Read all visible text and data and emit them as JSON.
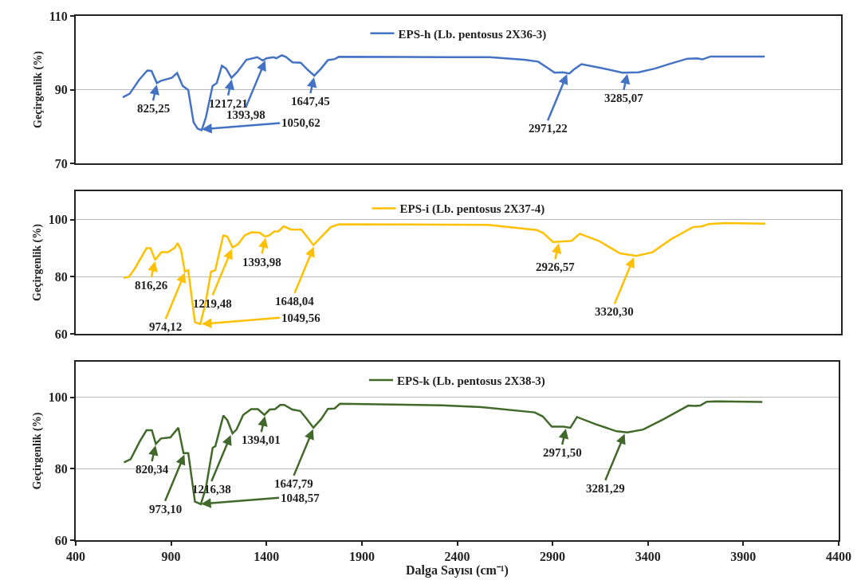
{
  "chart_data": [
    {
      "type": "line",
      "ylabel": "Geçirgenlik (%)",
      "xlim": [
        400,
        4400
      ],
      "ylim": [
        70,
        110
      ],
      "yticks": [
        70,
        90,
        110
      ],
      "grid": "y",
      "legend": "top",
      "tick_labels": "y",
      "series": [
        {
          "name": "EPS-h (Lb. pentosus 2X36-3)",
          "color": "#4472c4",
          "x": [
            646,
            682,
            732,
            774,
            796,
            824,
            846,
            902,
            930,
            959,
            988,
            1016,
            1037,
            1058,
            1080,
            1115,
            1137,
            1164,
            1186,
            1214,
            1243,
            1292,
            1349,
            1378,
            1396,
            1434,
            1448,
            1477,
            1498,
            1533,
            1576,
            1612,
            1647,
            1682,
            1718,
            1754,
            1775,
            2349,
            2562,
            2746,
            2817,
            2860,
            2903,
            2944,
            2980,
            3002,
            3043,
            3144,
            3257,
            3342,
            3426,
            3512,
            3597,
            3647,
            3675,
            3718,
            3768,
            4001
          ],
          "values": [
            87.9,
            88.9,
            92.7,
            95.2,
            95.1,
            91.8,
            92.4,
            93.2,
            94.5,
            91.0,
            89.9,
            81.1,
            79.4,
            79.0,
            82.4,
            91.0,
            91.8,
            96.5,
            95.7,
            93.2,
            94.7,
            98.1,
            98.8,
            97.9,
            98.5,
            98.8,
            98.5,
            99.3,
            98.9,
            97.4,
            97.3,
            95.4,
            93.8,
            95.7,
            98.0,
            98.3,
            98.9,
            98.8,
            98.8,
            98.1,
            97.6,
            96.1,
            94.6,
            94.7,
            94.4,
            95.4,
            96.9,
            95.9,
            94.6,
            94.7,
            95.7,
            97.1,
            98.4,
            98.5,
            98.2,
            99.0,
            99.0,
            99.0
          ]
        }
      ],
      "annotations": [
        {
          "text": "825,25",
          "x": 825.25,
          "y": 91.8
        },
        {
          "text": "1050,62",
          "x": 1050.62,
          "y": 79.2
        },
        {
          "text": "1217,21",
          "x": 1217.21,
          "y": 93.2
        },
        {
          "text": "1393,98",
          "x": 1393.98,
          "y": 98.3
        },
        {
          "text": "1647,45",
          "x": 1647.45,
          "y": 93.8
        },
        {
          "text": "2971,22",
          "x": 2971.22,
          "y": 94.6
        },
        {
          "text": "3285,07",
          "x": 3285.07,
          "y": 94.7
        }
      ]
    },
    {
      "type": "line",
      "ylabel": "Geçirgenlik (%)",
      "xlim": [
        400,
        4400
      ],
      "ylim": [
        60,
        110
      ],
      "yticks": [
        60,
        80,
        100
      ],
      "grid": "y",
      "legend": "top",
      "tick_labels": "y",
      "series": [
        {
          "name": "EPS-i (Lb. pentosus 2X37-4)",
          "color": "#ffc000",
          "x": [
            650,
            678,
            707,
            742,
            770,
            791,
            815,
            847,
            882,
            918,
            932,
            950,
            970,
            988,
            1023,
            1051,
            1079,
            1107,
            1129,
            1171,
            1192,
            1220,
            1248,
            1283,
            1318,
            1361,
            1389,
            1410,
            1438,
            1459,
            1487,
            1523,
            1579,
            1614,
            1642,
            1691,
            1733,
            1775,
            2345,
            2556,
            2809,
            2844,
            2894,
            2950,
            2992,
            3034,
            3133,
            3245,
            3329,
            3414,
            3512,
            3625,
            3674,
            3709,
            3794,
            4005
          ],
          "values": [
            79.6,
            80.0,
            82.7,
            86.8,
            90.0,
            90.0,
            85.9,
            88.6,
            88.6,
            90.2,
            91.8,
            89.5,
            81.8,
            82.3,
            64.1,
            63.4,
            70.9,
            81.8,
            82.3,
            94.5,
            94.1,
            90.3,
            91.4,
            94.5,
            95.6,
            95.5,
            94.1,
            94.5,
            95.9,
            95.9,
            97.7,
            96.6,
            96.5,
            93.6,
            91.1,
            94.5,
            97.4,
            98.4,
            98.3,
            98.2,
            96.4,
            95.3,
            92.2,
            92.4,
            92.6,
            95.1,
            92.6,
            88.2,
            87.3,
            88.6,
            93.2,
            97.4,
            97.7,
            98.5,
            98.8,
            98.6
          ]
        }
      ],
      "annotations": [
        {
          "text": "816,26",
          "x": 816.26,
          "y": 86.0
        },
        {
          "text": "974,12",
          "x": 974.12,
          "y": 82.0
        },
        {
          "text": "1049,56",
          "x": 1049.56,
          "y": 63.4
        },
        {
          "text": "1219,48",
          "x": 1219.48,
          "y": 90.3
        },
        {
          "text": "1393,98",
          "x": 1393.98,
          "y": 94.2
        },
        {
          "text": "1648,04",
          "x": 1648.04,
          "y": 91.1
        },
        {
          "text": "2926,57",
          "x": 2926.57,
          "y": 92.3
        },
        {
          "text": "3320,30",
          "x": 3320.3,
          "y": 87.3
        }
      ]
    },
    {
      "type": "line",
      "ylabel": "Geçirgenlik (%)",
      "xlabel": "Dalga Sayısı (cm⁻¹)",
      "xlim": [
        400,
        4400
      ],
      "xticks": [
        400,
        900,
        1400,
        1900,
        2400,
        2900,
        3400,
        3900,
        4400
      ],
      "ylim": [
        60,
        110
      ],
      "yticks": [
        60,
        80,
        100
      ],
      "grid": "y",
      "legend": "top",
      "series": [
        {
          "name": "EPS-k (Lb. pentosus 2X38-3)",
          "color": "#41692a",
          "x": [
            653,
            688,
            736,
            771,
            799,
            820,
            847,
            896,
            938,
            965,
            990,
            1025,
            1056,
            1083,
            1118,
            1132,
            1174,
            1195,
            1222,
            1243,
            1278,
            1320,
            1355,
            1389,
            1417,
            1445,
            1472,
            1493,
            1535,
            1577,
            1611,
            1646,
            1688,
            1722,
            1757,
            1785,
            2319,
            2528,
            2806,
            2848,
            2896,
            2958,
            2993,
            3028,
            3125,
            3236,
            3292,
            3375,
            3486,
            3611,
            3646,
            3674,
            3708,
            3764,
            4000
          ],
          "values": [
            81.8,
            82.7,
            87.7,
            90.8,
            90.8,
            87.0,
            88.5,
            88.8,
            91.5,
            84.4,
            84.4,
            70.8,
            70.1,
            74.8,
            85.9,
            86.3,
            94.9,
            93.6,
            89.9,
            91.0,
            95.1,
            96.7,
            96.7,
            95.1,
            96.6,
            96.7,
            97.9,
            97.9,
            96.6,
            96.2,
            94.0,
            91.5,
            94.0,
            96.8,
            96.9,
            98.2,
            97.8,
            97.3,
            95.8,
            94.7,
            91.8,
            91.8,
            91.5,
            94.5,
            92.5,
            90.5,
            90.2,
            91.0,
            94.0,
            97.7,
            97.6,
            97.7,
            98.8,
            98.9,
            98.7
          ]
        }
      ],
      "annotations": [
        {
          "text": "820,34",
          "x": 820.34,
          "y": 87.0
        },
        {
          "text": "973,10",
          "x": 973.1,
          "y": 84.4
        },
        {
          "text": "1048,57",
          "x": 1048.57,
          "y": 70.1
        },
        {
          "text": "1216,38",
          "x": 1216.38,
          "y": 89.9
        },
        {
          "text": "1394,01",
          "x": 1394.01,
          "y": 95.2
        },
        {
          "text": "1647,79",
          "x": 1647.79,
          "y": 91.5
        },
        {
          "text": "2971,50",
          "x": 2971.5,
          "y": 91.7
        },
        {
          "text": "3281,29",
          "x": 3281.29,
          "y": 90.2
        }
      ]
    }
  ]
}
